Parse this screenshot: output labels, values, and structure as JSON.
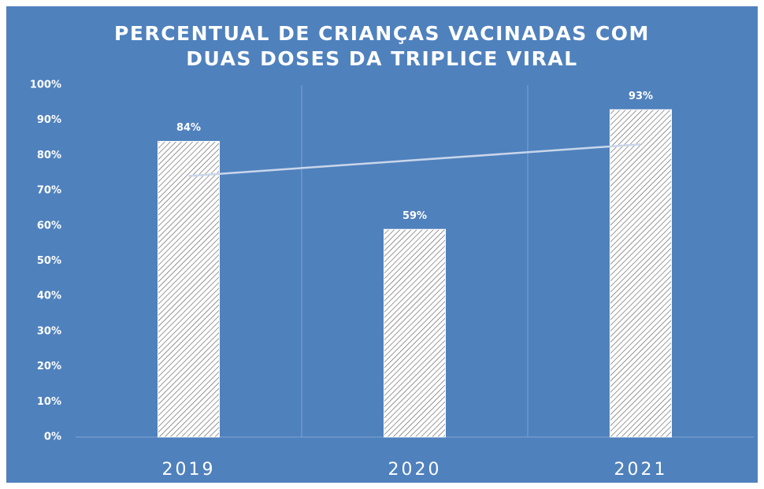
{
  "chart_data": {
    "type": "bar",
    "title": [
      "PERCENTUAL DE CRIANÇAS VACINADAS COM",
      "DUAS DOSES DA TRIPLICE VIRAL"
    ],
    "categories": [
      "2019",
      "2020",
      "2021"
    ],
    "values": [
      84,
      59,
      93
    ],
    "value_labels": [
      "84%",
      "59%",
      "93%"
    ],
    "color": "#ffffff",
    "background": "#4f81bd",
    "ylim": [
      0,
      100
    ],
    "yticks": [
      {
        "value": 0,
        "label": "0%"
      },
      {
        "value": 10,
        "label": "10%"
      },
      {
        "value": 20,
        "label": "20%"
      },
      {
        "value": 30,
        "label": "30%"
      },
      {
        "value": 40,
        "label": "40%"
      },
      {
        "value": 50,
        "label": "50%"
      },
      {
        "value": 60,
        "label": "60%"
      },
      {
        "value": 70,
        "label": "70%"
      },
      {
        "value": 80,
        "label": "80%"
      },
      {
        "value": 90,
        "label": "90%"
      },
      {
        "value": 100,
        "label": "100%"
      }
    ],
    "trendline": "linear",
    "grid": "vertical"
  }
}
